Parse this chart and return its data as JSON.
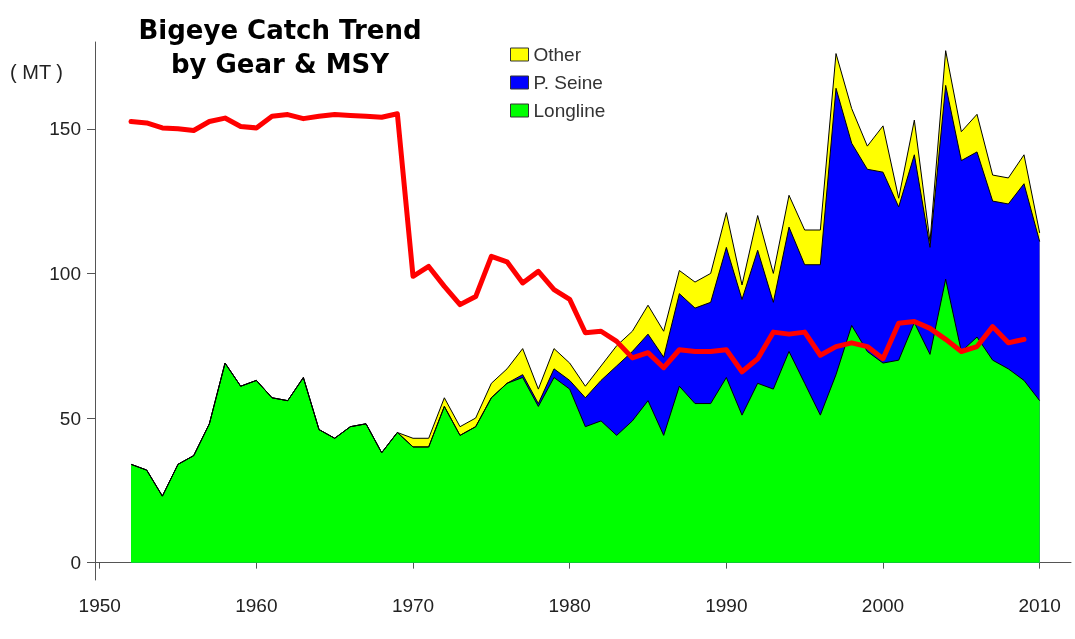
{
  "chart_data": {
    "type": "area",
    "title": "Bigeye Catch Trend\nby Gear & MSY",
    "ylabel": "( MT )",
    "stacked": true,
    "legend": "top",
    "grid": false,
    "x": [
      1952,
      1953,
      1954,
      1955,
      1956,
      1957,
      1958,
      1959,
      1960,
      1961,
      1962,
      1963,
      1964,
      1965,
      1966,
      1967,
      1968,
      1969,
      1970,
      1971,
      1972,
      1973,
      1974,
      1975,
      1976,
      1977,
      1978,
      1979,
      1980,
      1981,
      1982,
      1983,
      1984,
      1985,
      1986,
      1987,
      1988,
      1989,
      1990,
      1991,
      1992,
      1993,
      1994,
      1995,
      1996,
      1997,
      1998,
      1999,
      2000,
      2001,
      2002,
      2003,
      2004,
      2005,
      2006,
      2007,
      2008,
      2009,
      2010
    ],
    "xlim": [
      1949.7,
      2012
    ],
    "xticks": [
      1950,
      1960,
      1970,
      1980,
      1990,
      2000,
      2010
    ],
    "ylim": [
      -6,
      180
    ],
    "yticks": [
      0,
      50,
      100,
      150
    ],
    "series": [
      {
        "name": "Longline",
        "color": "#00ff00",
        "values": [
          34,
          32,
          23,
          34,
          37,
          48,
          69,
          61,
          63,
          57,
          56,
          64,
          46,
          43,
          47,
          48,
          38,
          45,
          40,
          40,
          54,
          44,
          47,
          57,
          62,
          64,
          54,
          64,
          60,
          47,
          49,
          44,
          49,
          56,
          44,
          61,
          55,
          55,
          64,
          51,
          62,
          60,
          73,
          62,
          51,
          65,
          82,
          73,
          69,
          70,
          83,
          72,
          98,
          73,
          78,
          70,
          67,
          63,
          56
        ]
      },
      {
        "name": "P. Seine",
        "color": "#0000ff",
        "values": [
          0,
          0,
          0,
          0,
          0,
          0,
          0,
          0,
          0,
          0,
          0,
          0,
          0,
          0,
          0,
          0,
          0,
          0,
          0,
          0,
          0,
          0,
          0,
          0,
          0,
          1,
          1,
          3,
          3,
          10,
          14,
          24,
          24,
          23,
          27,
          32,
          33,
          35,
          45,
          40,
          46,
          30,
          43,
          41,
          52,
          99,
          63,
          63,
          66,
          53,
          58,
          37,
          67,
          66,
          64,
          55,
          57,
          68,
          55
        ]
      },
      {
        "name": "Other",
        "color": "#ffff00",
        "values": [
          0,
          0,
          0,
          0,
          0,
          0,
          0,
          0,
          0,
          0,
          0,
          0,
          0,
          0,
          0,
          0,
          0,
          0,
          3,
          3,
          3,
          3,
          3,
          5,
          5,
          9,
          5,
          7,
          6,
          4,
          5,
          7,
          7,
          10,
          9,
          8,
          9,
          10,
          12,
          5,
          12,
          10,
          11,
          12,
          12,
          12,
          12,
          8,
          16,
          3,
          12,
          2,
          12,
          10,
          13,
          9,
          9,
          10,
          3
        ]
      },
      {
        "type": "line",
        "color": "#ff0000",
        "line_style": "solid",
        "values": [
          152.5,
          152,
          150.3,
          150,
          149.4,
          152.5,
          153.7,
          150.8,
          150.3,
          154.3,
          154.9,
          153.5,
          154.3,
          154.9,
          154.6,
          154.3,
          154,
          155.2,
          99,
          102.4,
          95.5,
          89.2,
          92,
          105.9,
          104,
          96.7,
          100.7,
          94.4,
          91,
          79.5,
          80,
          76.5,
          70.8,
          72.6,
          67.4,
          73.6,
          73,
          73,
          73.6,
          66,
          70.5,
          79.7,
          79,
          79.7,
          71.7,
          74.7,
          76,
          74.7,
          70.5,
          82.8,
          83.4,
          81,
          77.2,
          73,
          74.7,
          81.6,
          76,
          77.2,
          null
        ]
      }
    ]
  }
}
